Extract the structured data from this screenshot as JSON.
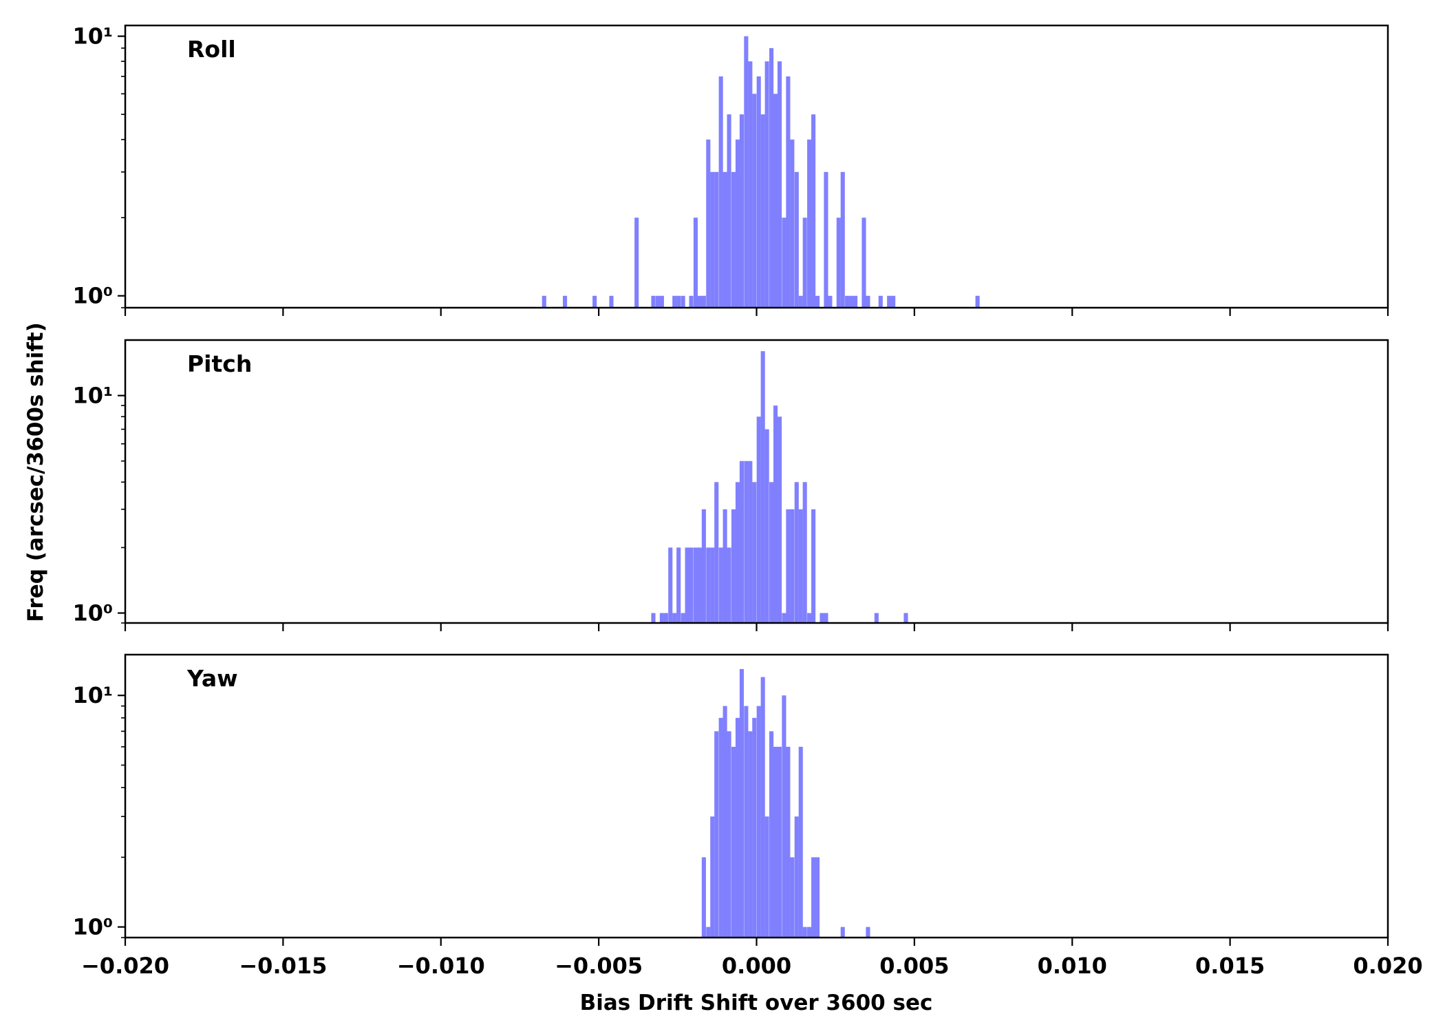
{
  "chart_data": {
    "type": "bar",
    "xlabel": "Bias Drift Shift over 3600 sec",
    "ylabel": "Freq (arcsec/3600s shift)",
    "xlim": [
      -0.02,
      0.02
    ],
    "x_ticks": [
      "−0.020",
      "−0.015",
      "−0.010",
      "−0.005",
      "0.000",
      "0.005",
      "0.010",
      "0.015",
      "0.020"
    ],
    "y_scale": "log",
    "grid": false,
    "bar_color": "#8080ff",
    "bin_width": 0.0001334,
    "panels": [
      {
        "name": "Roll",
        "ylim": [
          0.9,
          11
        ],
        "y_ticks": [
          {
            "value": 1,
            "label": "10⁰"
          },
          {
            "value": 10,
            "label": "10¹"
          }
        ],
        "bins": [
          [
            -0.00673,
            1
          ],
          [
            -0.00607,
            1
          ],
          [
            -0.00513,
            1
          ],
          [
            -0.0046,
            1
          ],
          [
            -0.0038,
            2
          ],
          [
            -0.00327,
            1
          ],
          [
            -0.00313,
            1
          ],
          [
            -0.003,
            1
          ],
          [
            -0.0026,
            1
          ],
          [
            -0.00247,
            1
          ],
          [
            -0.00233,
            1
          ],
          [
            -0.00207,
            1
          ],
          [
            -0.00193,
            2
          ],
          [
            -0.0018,
            1
          ],
          [
            -0.00167,
            1
          ],
          [
            -0.00153,
            4
          ],
          [
            -0.0014,
            3
          ],
          [
            -0.00127,
            3
          ],
          [
            -0.00113,
            7
          ],
          [
            -0.001,
            3
          ],
          [
            -0.00087,
            5
          ],
          [
            -0.00073,
            3
          ],
          [
            -0.0006,
            4
          ],
          [
            -0.00047,
            5
          ],
          [
            -0.00033,
            10
          ],
          [
            -0.0002,
            8
          ],
          [
            -7e-05,
            6
          ],
          [
            7e-05,
            7
          ],
          [
            0.0002,
            5
          ],
          [
            0.00033,
            8
          ],
          [
            0.00047,
            9
          ],
          [
            0.0006,
            6
          ],
          [
            0.00073,
            8
          ],
          [
            0.00087,
            2
          ],
          [
            0.001,
            7
          ],
          [
            0.00113,
            4
          ],
          [
            0.00127,
            3
          ],
          [
            0.0014,
            1
          ],
          [
            0.00153,
            2
          ],
          [
            0.00167,
            4
          ],
          [
            0.0018,
            5
          ],
          [
            0.00193,
            1
          ],
          [
            0.0022,
            3
          ],
          [
            0.00233,
            1
          ],
          [
            0.0026,
            2
          ],
          [
            0.00273,
            3
          ],
          [
            0.00287,
            1
          ],
          [
            0.003,
            1
          ],
          [
            0.00313,
            1
          ],
          [
            0.0034,
            2
          ],
          [
            0.00353,
            1
          ],
          [
            0.00393,
            1
          ],
          [
            0.0042,
            1
          ],
          [
            0.00433,
            1
          ],
          [
            0.007,
            1
          ]
        ]
      },
      {
        "name": "Pitch",
        "ylim": [
          0.9,
          18
        ],
        "y_ticks": [
          {
            "value": 1,
            "label": "10⁰"
          },
          {
            "value": 10,
            "label": "10¹"
          }
        ],
        "bins": [
          [
            -0.00327,
            1
          ],
          [
            -0.003,
            1
          ],
          [
            -0.00287,
            1
          ],
          [
            -0.00273,
            2
          ],
          [
            -0.0026,
            1
          ],
          [
            -0.00247,
            2
          ],
          [
            -0.00233,
            1
          ],
          [
            -0.0022,
            2
          ],
          [
            -0.00207,
            2
          ],
          [
            -0.00193,
            2
          ],
          [
            -0.0018,
            2
          ],
          [
            -0.00167,
            3
          ],
          [
            -0.00153,
            2
          ],
          [
            -0.0014,
            2
          ],
          [
            -0.00127,
            4
          ],
          [
            -0.00113,
            2
          ],
          [
            -0.001,
            3
          ],
          [
            -0.00087,
            2
          ],
          [
            -0.00073,
            3
          ],
          [
            -0.0006,
            4
          ],
          [
            -0.00047,
            5
          ],
          [
            -0.00033,
            5
          ],
          [
            -0.0002,
            5
          ],
          [
            -7e-05,
            4
          ],
          [
            7e-05,
            8
          ],
          [
            0.0002,
            16
          ],
          [
            0.00033,
            7
          ],
          [
            0.00047,
            4
          ],
          [
            0.0006,
            9
          ],
          [
            0.00073,
            8
          ],
          [
            0.00087,
            1
          ],
          [
            0.001,
            3
          ],
          [
            0.00113,
            3
          ],
          [
            0.00127,
            4
          ],
          [
            0.0014,
            3
          ],
          [
            0.00153,
            4
          ],
          [
            0.00167,
            1
          ],
          [
            0.0018,
            3
          ],
          [
            0.00207,
            1
          ],
          [
            0.0022,
            1
          ],
          [
            0.0038,
            1
          ],
          [
            0.00473,
            1
          ]
        ]
      },
      {
        "name": "Yaw",
        "ylim": [
          0.9,
          15
        ],
        "y_ticks": [
          {
            "value": 1,
            "label": "10⁰"
          },
          {
            "value": 10,
            "label": "10¹"
          }
        ],
        "bins": [
          [
            -0.00167,
            2
          ],
          [
            -0.00153,
            1
          ],
          [
            -0.0014,
            3
          ],
          [
            -0.00127,
            7
          ],
          [
            -0.00113,
            8
          ],
          [
            -0.001,
            9
          ],
          [
            -0.00087,
            7
          ],
          [
            -0.00073,
            6
          ],
          [
            -0.0006,
            8
          ],
          [
            -0.00047,
            13
          ],
          [
            -0.00033,
            9
          ],
          [
            -0.0002,
            7
          ],
          [
            -7e-05,
            8
          ],
          [
            7e-05,
            9
          ],
          [
            0.0002,
            12
          ],
          [
            0.00033,
            3
          ],
          [
            0.00047,
            7
          ],
          [
            0.0006,
            6
          ],
          [
            0.00073,
            6
          ],
          [
            0.00087,
            10
          ],
          [
            0.001,
            6
          ],
          [
            0.00113,
            2
          ],
          [
            0.00127,
            3
          ],
          [
            0.0014,
            6
          ],
          [
            0.00153,
            1
          ],
          [
            0.00167,
            1
          ],
          [
            0.0018,
            2
          ],
          [
            0.00193,
            2
          ],
          [
            0.00273,
            1
          ],
          [
            0.00353,
            1
          ]
        ]
      }
    ]
  }
}
